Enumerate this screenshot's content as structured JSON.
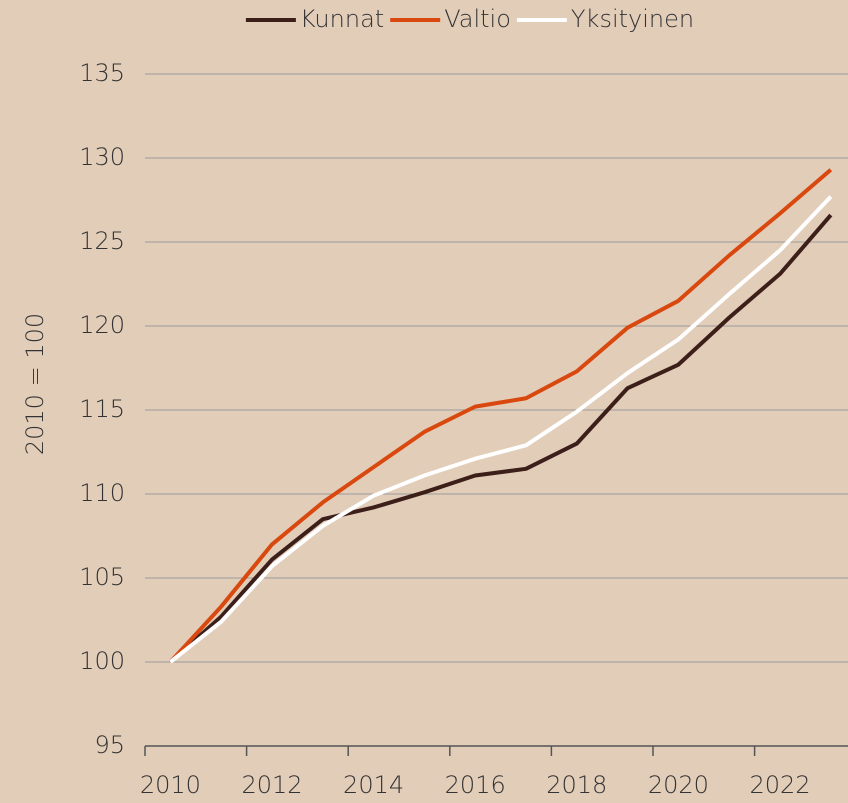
{
  "chart_data": {
    "type": "line",
    "y_label": "2010 = 100",
    "categories": [
      "2010",
      null,
      "2012",
      null,
      "2014",
      null,
      "2016",
      null,
      "2018",
      null,
      "2020",
      null,
      "2022",
      null
    ],
    "series": [
      {
        "name": "Kunnat",
        "color": "#3d1f1a",
        "values": [
          100,
          102.7,
          106.1,
          108.5,
          109.2,
          110.1,
          111.1,
          111.5,
          113.0,
          116.3,
          117.7,
          120.5,
          123.1,
          126.6
        ]
      },
      {
        "name": "Valtio",
        "color": "#d9480f",
        "values": [
          100,
          103.3,
          107.0,
          109.5,
          111.6,
          113.7,
          115.2,
          115.7,
          117.3,
          119.9,
          121.5,
          124.2,
          126.7,
          129.3
        ]
      },
      {
        "name": "Yksityinen",
        "color": "#ffffff",
        "values": [
          100,
          102.4,
          105.7,
          108.1,
          109.9,
          111.1,
          112.1,
          112.9,
          114.9,
          117.2,
          119.2,
          121.9,
          124.5,
          127.7
        ]
      }
    ],
    "ylim": [
      95,
      135
    ],
    "yticks": [
      95,
      100,
      105,
      110,
      115,
      120,
      125,
      130,
      135
    ],
    "grid": true,
    "legend": "top"
  }
}
